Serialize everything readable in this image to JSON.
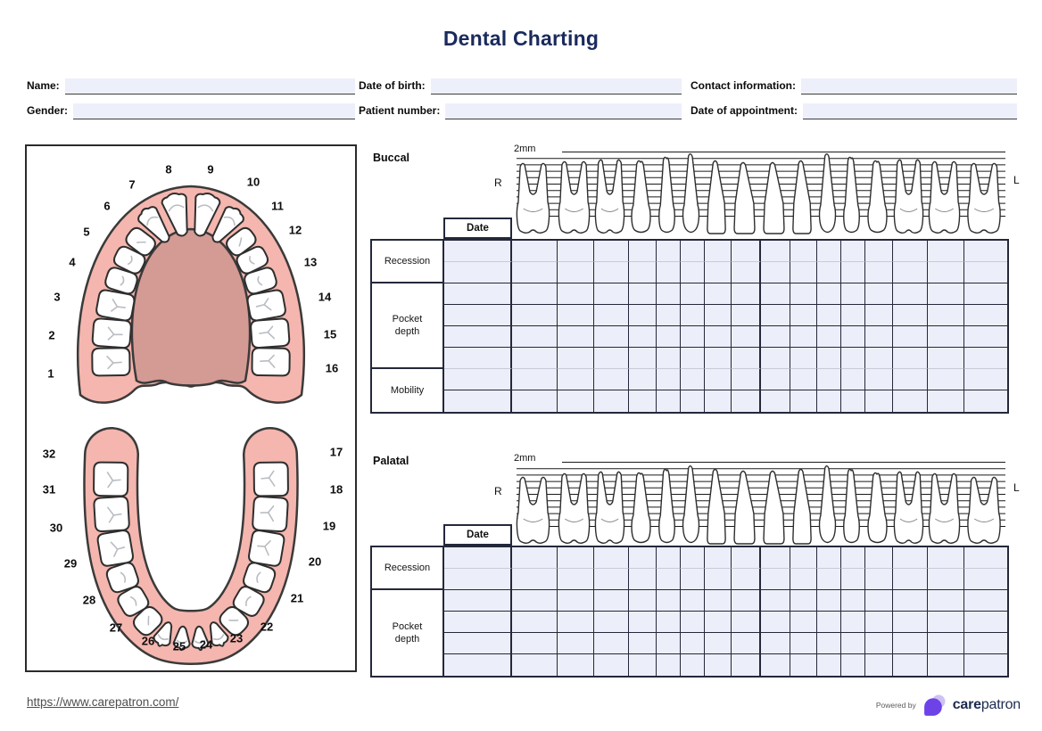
{
  "title": "Dental Charting",
  "form": {
    "fields": [
      {
        "id": "name",
        "label": "Name:",
        "value": ""
      },
      {
        "id": "date_of_birth",
        "label": "Date of birth:",
        "value": ""
      },
      {
        "id": "contact_information",
        "label": "Contact information:",
        "value": ""
      },
      {
        "id": "gender",
        "label": "Gender:",
        "value": ""
      },
      {
        "id": "patient_number",
        "label": "Patient number:",
        "value": ""
      },
      {
        "id": "date_of_appointment",
        "label": "Date of appointment:",
        "value": ""
      }
    ]
  },
  "arch": {
    "upper_numbers": [
      "1",
      "2",
      "3",
      "4",
      "5",
      "6",
      "7",
      "8",
      "9",
      "10",
      "11",
      "12",
      "13",
      "14",
      "15",
      "16"
    ],
    "lower_numbers": [
      "17",
      "18",
      "19",
      "20",
      "21",
      "22",
      "23",
      "24",
      "25",
      "26",
      "27",
      "28",
      "29",
      "30",
      "31",
      "32"
    ]
  },
  "sections": {
    "buccal": {
      "label": "Buccal",
      "scale_label": "2mm",
      "right_label": "R",
      "left_label": "L",
      "date_label": "Date",
      "rows": [
        {
          "label": "Recession",
          "lines": 2
        },
        {
          "label": "Pocket depth",
          "lines": 4
        },
        {
          "label": "Mobility",
          "lines": 2
        }
      ]
    },
    "palatal": {
      "label": "Palatal",
      "scale_label": "2mm",
      "right_label": "R",
      "left_label": "L",
      "date_label": "Date",
      "rows": [
        {
          "label": "Recession",
          "lines": 2
        },
        {
          "label": "Pocket depth",
          "lines": 4
        }
      ]
    }
  },
  "footer": {
    "link_text": "https://www.carepatron.com/",
    "powered_by": "Powered by",
    "brand_bold": "care",
    "brand_rest": "patron"
  },
  "colors": {
    "title_navy": "#1a2a5c",
    "field_bg": "#edf0fb",
    "grid_cell_bg": "#eceef9",
    "grid_line_dark": "#24283a",
    "grid_line_light": "#c7cbd8",
    "gum_pink": "#f4b6ae",
    "palate_pink": "#d49a94",
    "tooth_outline": "#2e2e2e",
    "logo_purple": "#6d43e8",
    "logo_light_purple": "#cdc2f2",
    "brand_navy": "#1d2b4f"
  }
}
